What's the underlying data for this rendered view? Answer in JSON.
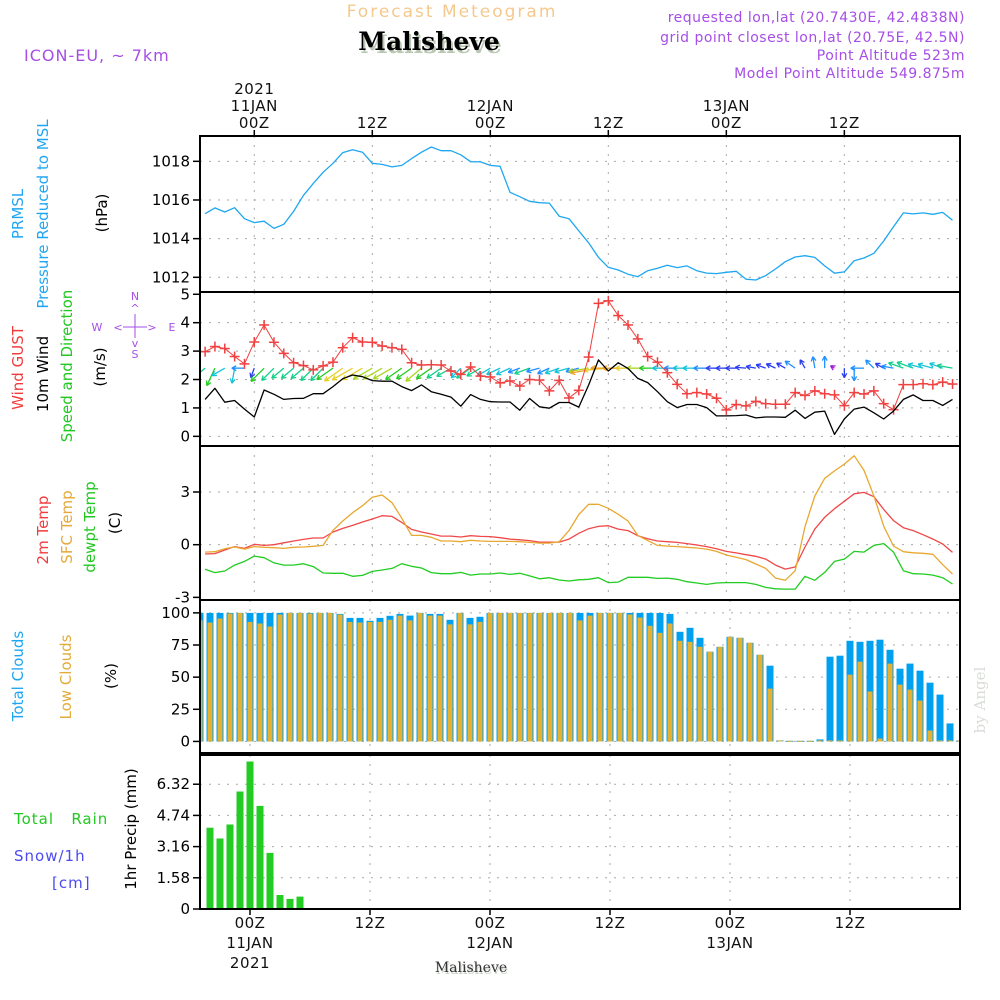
{
  "header": {
    "title": "Forecast Meteogram",
    "location": "Malisheve",
    "model": "ICON-EU, ~ 7km",
    "info": [
      "requested lon,lat (20.7430E, 42.4838N)",
      "grid point closest lon,lat (20.75E, 42.5N)",
      "Point Altitude 523m",
      "Model Point Altitude 549.875m"
    ]
  },
  "labels": {
    "pressure": {
      "line1": "PRMSL",
      "line2": "Pressure Reduced to MSL",
      "unit": "(hPa)"
    },
    "wind": {
      "gust": "Wind GUST",
      "wind10m": "10m Wind",
      "speed_dir": "Speed and Direction",
      "unit": "(m/s)",
      "compass": {
        "n": "N",
        "s": "S",
        "e": "E",
        "w": "W",
        "up": "^",
        "down": "v",
        "left": "<",
        "right": ">"
      }
    },
    "temp": {
      "t2m": "2m Temp",
      "sfc": "SFC Temp",
      "dewpt": "dewpt Temp",
      "unit": "(C)"
    },
    "clouds": {
      "total": "Total Clouds",
      "low": "Low Clouds",
      "unit": "(%)"
    },
    "precip": {
      "rain": "Total   Rain",
      "snow": "Snow/1h",
      "snow_unit": "[cm]",
      "axis": "1hr Precip (mm)"
    }
  },
  "time_axis": {
    "origin": "11JAN2021 00Z",
    "top": [
      {
        "hour": 0,
        "lines": [
          "2021",
          "11JAN",
          "00Z"
        ]
      },
      {
        "hour": 12,
        "lines": [
          "12Z"
        ]
      },
      {
        "hour": 24,
        "lines": [
          "12JAN",
          "00Z"
        ]
      },
      {
        "hour": 36,
        "lines": [
          "12Z"
        ]
      },
      {
        "hour": 48,
        "lines": [
          "13JAN",
          "00Z"
        ]
      },
      {
        "hour": 60,
        "lines": [
          "12Z"
        ]
      }
    ],
    "bottom": [
      {
        "hour": 0,
        "lines": [
          "00Z",
          "11JAN",
          "2021"
        ]
      },
      {
        "hour": 12,
        "lines": [
          "12Z"
        ]
      },
      {
        "hour": 24,
        "lines": [
          "00Z",
          "12JAN"
        ]
      },
      {
        "hour": 36,
        "lines": [
          "12Z"
        ]
      },
      {
        "hour": 48,
        "lines": [
          "00Z",
          "13JAN"
        ]
      },
      {
        "hour": 60,
        "lines": [
          "12Z"
        ]
      }
    ]
  },
  "footer": {
    "location": "Malisheve",
    "watermark": "by Angel"
  },
  "chart_data": [
    {
      "id": "pressure",
      "type": "line",
      "title": "PRMSL Pressure Reduced to MSL",
      "ylabel": "(hPa)",
      "xlim": [
        -5.52,
        71.76
      ],
      "ylim": [
        1011.24,
        1019.31
      ],
      "yticks": [
        1012,
        1014,
        1016,
        1018
      ],
      "ytick_labels": [
        "1012",
        "1014",
        "1016",
        "1018"
      ],
      "grid": true,
      "x_start_hour": -5,
      "x_step_hours": 1,
      "series": [
        {
          "key": "prmsl",
          "name": "PRMSL",
          "color": "#1ea7f0",
          "values": [
            1015.29,
            1015.59,
            1015.38,
            1015.6,
            1015.03,
            1014.83,
            1014.9,
            1014.53,
            1014.74,
            1015.41,
            1016.24,
            1016.86,
            1017.43,
            1017.9,
            1018.45,
            1018.6,
            1018.47,
            1017.9,
            1017.84,
            1017.71,
            1017.79,
            1018.14,
            1018.47,
            1018.74,
            1018.55,
            1018.55,
            1018.34,
            1017.98,
            1017.97,
            1017.79,
            1017.74,
            1016.4,
            1016.17,
            1015.93,
            1015.86,
            1015.84,
            1015.16,
            1015.03,
            1014.4,
            1013.78,
            1013.03,
            1012.52,
            1012.38,
            1012.16,
            1012.03,
            1012.34,
            1012.47,
            1012.62,
            1012.5,
            1012.59,
            1012.34,
            1012.22,
            1012.19,
            1012.26,
            1012.31,
            1011.9,
            1011.86,
            1012.09,
            1012.43,
            1012.81,
            1013.05,
            1013.12,
            1013.03,
            1012.59,
            1012.21,
            1012.28,
            1012.86,
            1013.0,
            1013.24,
            1013.88,
            1014.62,
            1015.33,
            1015.28,
            1015.33,
            1015.26,
            1015.36,
            1014.95
          ]
        }
      ]
    },
    {
      "id": "wind",
      "type": "line",
      "title": "Wind GUST / 10m Wind Speed and Direction",
      "ylabel": "(m/s)",
      "xlim": [
        -5.52,
        71.76
      ],
      "ylim": [
        -0.34,
        5.08
      ],
      "yticks": [
        0,
        1,
        2,
        3,
        4,
        5
      ],
      "ytick_labels": [
        "0",
        "1",
        "2",
        "3",
        "4",
        "5"
      ],
      "grid": true,
      "x_start_hour": -5,
      "x_step_hours": 1,
      "series": [
        {
          "key": "gust",
          "name": "Wind GUST",
          "color": "#f04040",
          "marker": "+",
          "values": [
            2.98,
            3.16,
            3.09,
            2.81,
            2.55,
            3.32,
            3.92,
            3.31,
            2.92,
            2.59,
            2.49,
            2.34,
            2.48,
            2.61,
            3.12,
            3.47,
            3.32,
            3.31,
            3.18,
            3.12,
            3.06,
            2.59,
            2.51,
            2.52,
            2.51,
            2.3,
            2.18,
            2.44,
            2.12,
            2.09,
            1.88,
            1.95,
            1.77,
            2.0,
            1.98,
            1.6,
            1.97,
            1.35,
            1.62,
            2.79,
            4.68,
            4.77,
            4.25,
            3.92,
            3.43,
            2.81,
            2.61,
            2.24,
            1.83,
            1.5,
            1.54,
            1.49,
            1.34,
            0.93,
            1.12,
            1.07,
            1.23,
            1.15,
            1.13,
            1.13,
            1.54,
            1.44,
            1.6,
            1.5,
            1.46,
            1.08,
            1.54,
            1.49,
            1.6,
            1.15,
            0.94,
            1.82,
            1.82,
            1.85,
            1.82,
            1.91,
            1.84
          ]
        },
        {
          "key": "wind10m",
          "name": "10m Wind",
          "color": "#000000",
          "values": [
            1.3,
            1.69,
            1.2,
            1.26,
            0.96,
            0.68,
            1.63,
            1.48,
            1.3,
            1.33,
            1.34,
            1.5,
            1.5,
            1.75,
            2.03,
            2.16,
            2.1,
            1.96,
            1.94,
            1.94,
            1.75,
            1.61,
            1.81,
            1.57,
            1.48,
            1.38,
            1.06,
            1.47,
            1.3,
            1.22,
            1.21,
            1.21,
            0.92,
            1.33,
            1.04,
            0.99,
            1.19,
            1.19,
            1.03,
            1.81,
            2.69,
            2.3,
            2.59,
            2.39,
            2.04,
            1.89,
            1.57,
            1.22,
            1.01,
            1.12,
            1.12,
            1.01,
            0.72,
            0.72,
            0.73,
            0.75,
            0.65,
            0.68,
            0.68,
            0.67,
            0.92,
            0.63,
            0.85,
            0.89,
            0.07,
            0.61,
            0.96,
            1.03,
            0.83,
            0.61,
            0.89,
            1.3,
            1.46,
            1.26,
            1.26,
            1.09,
            1.3
          ]
        }
      ],
      "wind_direction_deg": [
        50,
        25,
        60,
        10,
        90,
        20,
        45,
        45,
        50,
        50,
        50,
        45,
        45,
        55,
        55,
        60,
        60,
        60,
        60,
        60,
        55,
        55,
        50,
        55,
        55,
        60,
        45,
        55,
        60,
        60,
        65,
        65,
        70,
        70,
        75,
        65,
        70,
        75,
        75,
        80,
        80,
        85,
        90,
        90,
        90,
        90,
        90,
        90,
        90,
        90,
        90,
        90,
        90,
        90,
        90,
        95,
        100,
        110,
        115,
        120,
        125,
        150,
        170,
        180,
        120,
        0,
        0,
        90,
        135,
        120,
        100,
        110,
        110,
        105,
        105,
        110,
        100
      ]
    },
    {
      "id": "temp",
      "type": "line",
      "title": "2m Temp / SFC Temp / dewpt Temp",
      "ylabel": "(C)",
      "xlim": [
        -5.52,
        71.76
      ],
      "ylim": [
        -3.15,
        5.62
      ],
      "yticks": [
        -3,
        0,
        3
      ],
      "ytick_labels": [
        "-3",
        "0",
        "3"
      ],
      "grid": true,
      "x_start_hour": -5,
      "x_step_hours": 1,
      "series": [
        {
          "key": "t2m",
          "name": "2m Temp",
          "color": "#f04848",
          "values": [
            -0.53,
            -0.51,
            -0.3,
            -0.11,
            -0.21,
            0.02,
            -0.04,
            0.0,
            0.11,
            0.21,
            0.3,
            0.38,
            0.38,
            0.72,
            0.93,
            1.1,
            1.29,
            1.46,
            1.65,
            1.61,
            1.27,
            0.87,
            0.72,
            0.61,
            0.49,
            0.49,
            0.44,
            0.51,
            0.47,
            0.46,
            0.4,
            0.32,
            0.28,
            0.23,
            0.15,
            0.15,
            0.15,
            0.32,
            0.65,
            0.91,
            1.04,
            1.08,
            0.89,
            0.8,
            0.51,
            0.34,
            0.21,
            0.17,
            0.13,
            0.06,
            -0.02,
            -0.11,
            -0.23,
            -0.38,
            -0.47,
            -0.57,
            -0.66,
            -0.82,
            -1.16,
            -1.39,
            -1.27,
            -0.13,
            0.89,
            1.56,
            2.05,
            2.47,
            2.9,
            2.98,
            2.73,
            2.01,
            1.37,
            0.97,
            0.8,
            0.57,
            0.32,
            0.04,
            -0.44
          ]
        },
        {
          "key": "sfc",
          "name": "SFC Temp",
          "color": "#e8a830",
          "values": [
            -0.42,
            -0.4,
            -0.23,
            -0.13,
            -0.25,
            -0.11,
            -0.15,
            -0.17,
            -0.21,
            -0.15,
            -0.13,
            -0.09,
            -0.04,
            0.82,
            1.35,
            1.82,
            2.22,
            2.7,
            2.83,
            2.39,
            1.5,
            0.53,
            0.53,
            0.42,
            0.21,
            0.21,
            0.17,
            0.25,
            0.21,
            0.19,
            0.19,
            0.19,
            0.17,
            0.13,
            0.09,
            0.09,
            0.17,
            0.8,
            1.72,
            2.3,
            2.3,
            2.07,
            1.73,
            1.35,
            0.53,
            0.23,
            -0.04,
            -0.08,
            -0.11,
            -0.15,
            -0.19,
            -0.25,
            -0.38,
            -0.59,
            -0.72,
            -0.85,
            -1.1,
            -1.35,
            -1.9,
            -2.03,
            -1.48,
            1.03,
            2.77,
            3.78,
            4.2,
            4.59,
            5.07,
            4.23,
            2.77,
            1.06,
            -0.08,
            -0.4,
            -0.46,
            -0.49,
            -0.55,
            -1.14,
            -1.67
          ]
        },
        {
          "key": "dewpt",
          "name": "dewpt Temp",
          "color": "#22cc22",
          "values": [
            -1.4,
            -1.59,
            -1.5,
            -1.16,
            -0.95,
            -0.65,
            -0.74,
            -1.04,
            -1.16,
            -1.16,
            -1.08,
            -1.25,
            -1.61,
            -1.63,
            -1.63,
            -1.8,
            -1.75,
            -1.52,
            -1.44,
            -1.35,
            -1.08,
            -1.23,
            -1.33,
            -1.59,
            -1.65,
            -1.65,
            -1.58,
            -1.73,
            -1.67,
            -1.67,
            -1.61,
            -1.69,
            -1.63,
            -1.78,
            -1.94,
            -1.88,
            -2.01,
            -2.07,
            -2.0,
            -1.97,
            -1.88,
            -2.16,
            -2.13,
            -1.86,
            -1.86,
            -1.86,
            -1.92,
            -1.9,
            -1.97,
            -2.11,
            -2.18,
            -2.26,
            -2.18,
            -2.16,
            -2.16,
            -2.16,
            -2.26,
            -2.43,
            -2.51,
            -2.53,
            -2.53,
            -1.8,
            -2.03,
            -1.58,
            -0.95,
            -0.82,
            -0.38,
            -0.42,
            -0.04,
            0.06,
            -0.42,
            -1.48,
            -1.65,
            -1.67,
            -1.73,
            -1.88,
            -2.24
          ]
        }
      ]
    },
    {
      "id": "clouds",
      "type": "bar",
      "title": "Total Clouds / Low Clouds",
      "ylabel": "(%)",
      "xlim": [
        -5,
        71
      ],
      "ylim": [
        -9,
        110
      ],
      "yticks": [
        0,
        25,
        50,
        75,
        100
      ],
      "ytick_labels": [
        "0",
        "25",
        "50",
        "75",
        "100"
      ],
      "grid": true,
      "x_start_hour": -5,
      "x_step_hours": 1,
      "series": [
        {
          "key": "total_clouds",
          "name": "Total Clouds",
          "color": "#00a0f0",
          "values": [
            100,
            100,
            100,
            100,
            100,
            100,
            100,
            100,
            100,
            100,
            100,
            100,
            100,
            100,
            99.2,
            96.1,
            96.1,
            93.8,
            96.1,
            97.7,
            99.2,
            97.9,
            100,
            99.2,
            99.2,
            94.6,
            100,
            96.1,
            96.9,
            100,
            100,
            100,
            100,
            100,
            100,
            100,
            100,
            100,
            100,
            100,
            100,
            100,
            100,
            100,
            100,
            100,
            100,
            99.2,
            85.3,
            88.4,
            80.6,
            69.8,
            73.6,
            81.4,
            80.6,
            76.7,
            67.4,
            58.9,
            0.8,
            0.5,
            0.5,
            0.5,
            1.6,
            65.9,
            66.7,
            78.3,
            77.5,
            78.3,
            79.1,
            71.3,
            56.6,
            60.5,
            55.0,
            45.7,
            36.4,
            14.0,
            0.8
          ]
        },
        {
          "key": "low_clouds",
          "name": "Low Clouds",
          "color": "#e6b030",
          "values": [
            94.1,
            92.5,
            95.6,
            99.5,
            100,
            93.0,
            91.7,
            89.4,
            98.7,
            100,
            100,
            99.5,
            100,
            100,
            98.7,
            93.0,
            92.5,
            93.0,
            93.0,
            94.6,
            97.9,
            94.1,
            100,
            97.9,
            97.9,
            91.0,
            100,
            91.0,
            93.0,
            100,
            100,
            100,
            100,
            100,
            100,
            100,
            100,
            100,
            94.1,
            97.9,
            100,
            100,
            100,
            98.7,
            96.4,
            89.9,
            84.5,
            91.7,
            78.3,
            77.5,
            73.6,
            69.8,
            73.6,
            81.4,
            80.6,
            76.7,
            67.4,
            41.1,
            0.8,
            0.5,
            0.5,
            0.5,
            0.8,
            0.8,
            0.8,
            51.9,
            62.0,
            38.8,
            2.3,
            60.5,
            44.2,
            40.3,
            31.8,
            8.5,
            0.8,
            0.8,
            0.8
          ]
        }
      ]
    },
    {
      "id": "precip",
      "type": "bar",
      "title": "Total Rain / Snow 1h",
      "ylabel": "1hr Precip (mm)",
      "xlim": [
        -5,
        71
      ],
      "ylim": [
        0,
        7.8
      ],
      "yticks": [
        0,
        1.58,
        3.16,
        4.74,
        6.32
      ],
      "ytick_labels": [
        "0",
        "1.58",
        "3.16",
        "4.74",
        "6.32"
      ],
      "grid": true,
      "x_step_hours": 1,
      "series": [
        {
          "key": "rain",
          "name": "Total Rain",
          "color": "#22cc22",
          "x_start_hour": -4,
          "values": [
            4.12,
            3.57,
            4.28,
            5.95,
            7.47,
            5.22,
            2.84,
            0.71,
            0.51,
            0.63
          ]
        },
        {
          "key": "snow",
          "name": "Snow/1h",
          "color": "#4a4af0",
          "x_start_hour": -4,
          "values": []
        }
      ]
    }
  ]
}
